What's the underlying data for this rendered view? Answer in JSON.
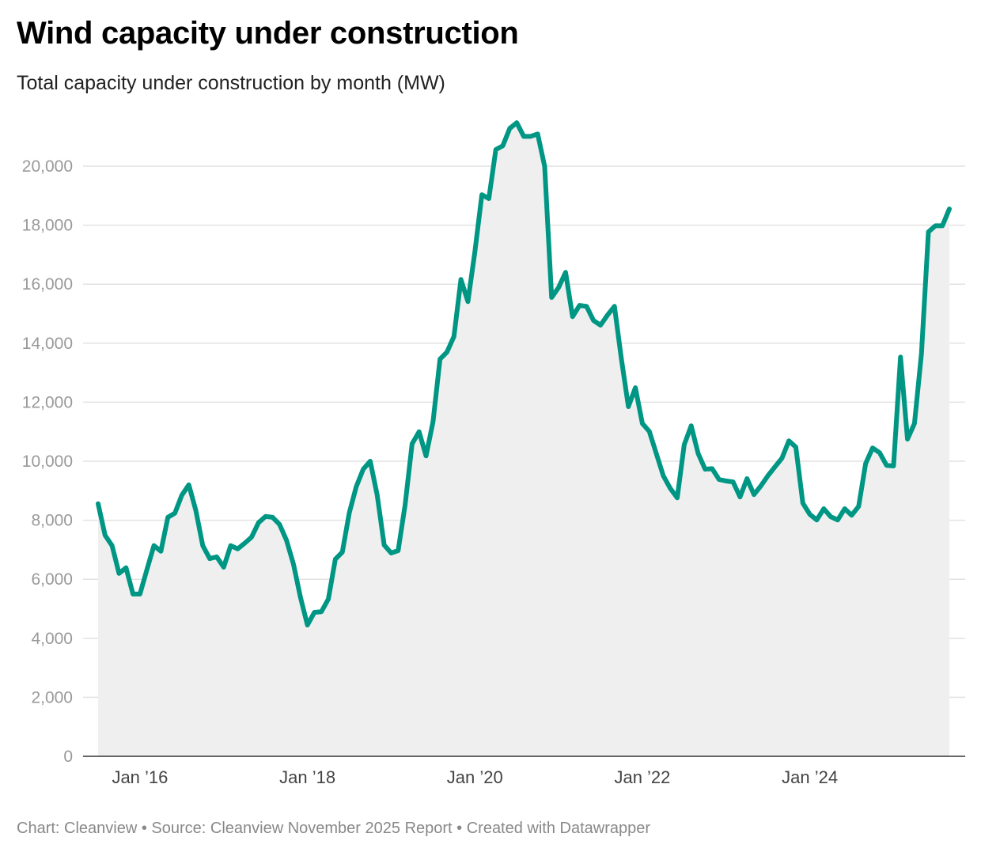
{
  "chart_data": {
    "type": "area",
    "title": "Wind capacity under construction",
    "subtitle": "Total capacity under construction by month (MW)",
    "footer": "Chart: Cleanview • Source: Cleanview November 2025 Report • Created with Datawrapper",
    "xlabel": "",
    "ylabel": "MW",
    "start_month": "2015-07",
    "frequency": "monthly",
    "ylim": [
      0,
      21500
    ],
    "yticks": [
      0,
      2000,
      4000,
      6000,
      8000,
      10000,
      12000,
      14000,
      16000,
      18000,
      20000
    ],
    "ytick_labels": [
      "0",
      "2,000",
      "4,000",
      "6,000",
      "8,000",
      "10,000",
      "12,000",
      "14,000",
      "16,000",
      "18,000",
      "20,000"
    ],
    "xticks": [
      {
        "month": "2016-01",
        "label": "Jan ’16"
      },
      {
        "month": "2018-01",
        "label": "Jan ’18"
      },
      {
        "month": "2020-01",
        "label": "Jan ’20"
      },
      {
        "month": "2022-01",
        "label": "Jan ’22"
      },
      {
        "month": "2024-01",
        "label": "Jan ’24"
      }
    ],
    "grid": true,
    "colors": {
      "line": "#009684",
      "area": "#efefef",
      "grid": "#e2e2e2",
      "baseline": "#333333"
    },
    "values": [
      8560,
      7490,
      7140,
      6200,
      6390,
      5500,
      5500,
      6330,
      7140,
      6950,
      8100,
      8240,
      8850,
      9200,
      8340,
      7140,
      6700,
      6760,
      6410,
      7140,
      7030,
      7220,
      7430,
      7920,
      8130,
      8100,
      7860,
      7320,
      6510,
      5390,
      4450,
      4880,
      4900,
      5330,
      6680,
      6920,
      8250,
      9140,
      9730,
      10000,
      8850,
      7160,
      6890,
      6970,
      8520,
      10590,
      11000,
      10180,
      11340,
      13460,
      13700,
      14230,
      16160,
      15410,
      17100,
      19030,
      18900,
      20560,
      20690,
      21280,
      21470,
      21010,
      21010,
      21090,
      19990,
      15550,
      15890,
      16400,
      14900,
      15280,
      15250,
      14770,
      14610,
      14950,
      15250,
      13460,
      11850,
      12490,
      11280,
      11010,
      10260,
      9510,
      9080,
      8760,
      10560,
      11200,
      10260,
      9730,
      9750,
      9380,
      9330,
      9300,
      8790,
      9410,
      8870,
      9170,
      9510,
      9810,
      10100,
      10690,
      10480,
      8580,
      8200,
      8010,
      8390,
      8120,
      8010,
      8390,
      8170,
      8470,
      9920,
      10450,
      10290,
      9860,
      9840,
      13530,
      10750,
      11280,
      13640,
      17770,
      17980,
      17980,
      18550
    ]
  }
}
